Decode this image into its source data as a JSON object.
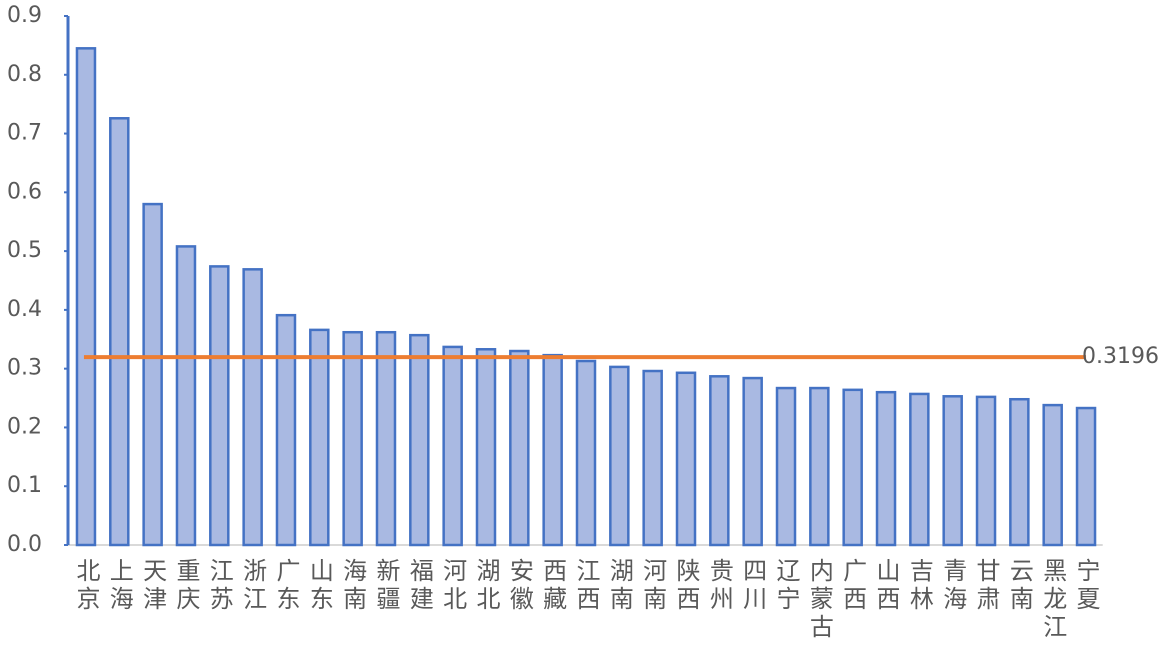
{
  "chart_data": {
    "type": "bar",
    "categories": [
      "北京",
      "上海",
      "天津",
      "重庆",
      "江苏",
      "浙江",
      "广东",
      "山东",
      "海南",
      "新疆",
      "福建",
      "河北",
      "湖北",
      "安徽",
      "西藏",
      "江西",
      "湖南",
      "河南",
      "陕西",
      "贵州",
      "四川",
      "辽宁",
      "内蒙古",
      "广西",
      "山西",
      "吉林",
      "青海",
      "甘肃",
      "云南",
      "黑龙江",
      "宁夏"
    ],
    "values": [
      0.845,
      0.726,
      0.58,
      0.508,
      0.474,
      0.469,
      0.391,
      0.366,
      0.362,
      0.362,
      0.357,
      0.337,
      0.333,
      0.33,
      0.323,
      0.313,
      0.303,
      0.296,
      0.293,
      0.287,
      0.284,
      0.267,
      0.267,
      0.264,
      0.26,
      0.257,
      0.253,
      0.252,
      0.248,
      0.238,
      0.233
    ],
    "color": "#a9b9e2",
    "edge_color": "#4472c4",
    "ylim": [
      0,
      0.9
    ],
    "yticks": [
      {
        "value": 0,
        "label": "0.0"
      },
      0.1,
      0.2,
      0.3,
      0.4,
      0.5,
      0.6,
      0.7,
      0.8,
      0.9
    ],
    "reference_line": {
      "value": 0.3196,
      "color": "#ed7d31"
    }
  }
}
